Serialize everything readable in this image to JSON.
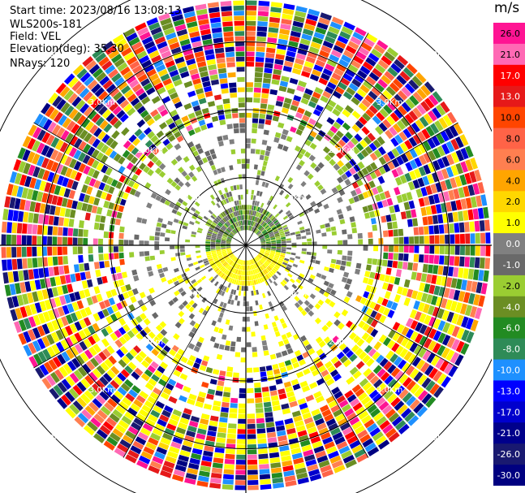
{
  "header": {
    "start_time": "Start time: 2023/08/16 13:08:13",
    "instrument": "WLS200s-181",
    "field": "Field: VEL",
    "elevation": "Elevation(deg): 35.30",
    "nrays": "NRays: 120"
  },
  "chart_data": {
    "type": "ppi-radar",
    "field": "VEL",
    "nrays": 120,
    "elevation_deg": 35.3,
    "range_max_km": 4.0,
    "ring_labels": [
      "1.0Km",
      "2.0Km",
      "3.0Km",
      "4.0Km"
    ],
    "ring_km": [
      1.0,
      2.0,
      3.0,
      4.0
    ],
    "colorbar": {
      "unit": "m/s",
      "ticks": [
        "26.0",
        "21.0",
        "17.0",
        "13.0",
        "10.0",
        "8.0",
        "6.0",
        "4.0",
        "2.0",
        "1.0",
        "0.0",
        "-1.0",
        "-2.0",
        "-4.0",
        "-6.0",
        "-8.0",
        "-10.0",
        "-13.0",
        "-17.0",
        "-21.0",
        "-26.0",
        "-30.0"
      ],
      "colors": [
        "#ff1493",
        "#ff69b4",
        "#ff0000",
        "#e61919",
        "#ff4500",
        "#ff6347",
        "#ff7f50",
        "#ffa500",
        "#ffd700",
        "#ffff00",
        "#808080",
        "#696969",
        "#9acd32",
        "#6b8e23",
        "#228b22",
        "#2e8b57",
        "#1e90ff",
        "#0000ff",
        "#0000cd",
        "#00008b",
        "#191970",
        "#000080"
      ]
    }
  }
}
